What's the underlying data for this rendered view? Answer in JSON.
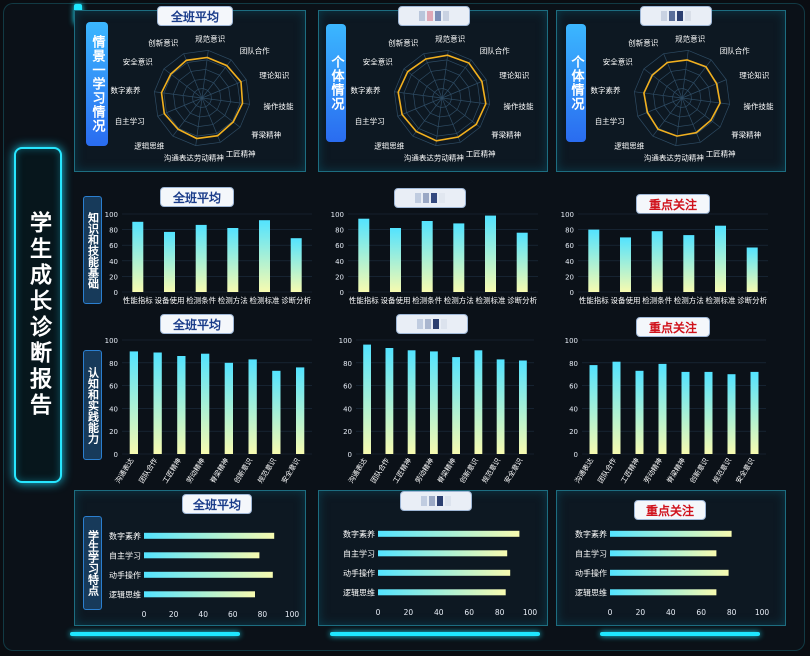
{
  "main_title": "学生成长诊断报告",
  "sections": {
    "radar": "情景一学习情况",
    "radar_personal": "个体情况",
    "knowledge": "知识和技能基础",
    "cognition": "认知和实践能力",
    "traits": "学生学习特点"
  },
  "badges": {
    "class_avg": "全班平均",
    "focus": "重点关注"
  },
  "colors": {
    "accent": "#22e2ff",
    "radar_line": "#f2b01e",
    "bar_top": "#53e3ff",
    "bar_bottom": "#f7fbb0",
    "red_badge": "#d0111b"
  },
  "chart_data": [
    {
      "id": "radar_avg",
      "type": "radar",
      "title": "全班平均",
      "axes": [
        "规范意识",
        "团队合作",
        "理论知识",
        "操作技能",
        "脊梁精神",
        "工匠精神",
        "沟通表达劳动精神",
        "逻辑思维",
        "自主学习",
        "数字素养",
        "安全意识",
        "创新意识"
      ],
      "values": [
        85,
        85,
        88,
        85,
        82,
        85,
        85,
        82,
        85,
        85,
        82,
        85
      ],
      "range": [
        0,
        100
      ]
    },
    {
      "id": "radar_p1",
      "type": "radar",
      "title": "",
      "axes": [
        "规范意识",
        "团队合作",
        "理论知识",
        "操作技能",
        "脊梁精神",
        "工匠精神",
        "沟通表达劳动精神",
        "逻辑思维",
        "自主学习",
        "数字素养",
        "安全意识",
        "创新意识"
      ],
      "values": [
        90,
        92,
        90,
        92,
        90,
        88,
        90,
        88,
        90,
        92,
        90,
        88
      ],
      "range": [
        0,
        100
      ]
    },
    {
      "id": "radar_p2",
      "type": "radar",
      "title": "",
      "axes": [
        "规范意识",
        "团队合作",
        "理论知识",
        "操作技能",
        "脊梁精神",
        "工匠精神",
        "沟通表达劳动精神",
        "逻辑思维",
        "自主学习",
        "数字素养",
        "安全意识",
        "创新意识"
      ],
      "values": [
        80,
        82,
        78,
        80,
        76,
        78,
        80,
        82,
        78,
        80,
        78,
        80
      ],
      "range": [
        0,
        100
      ]
    },
    {
      "id": "know_avg",
      "type": "bar",
      "title": "全班平均",
      "categories": [
        "性能指标",
        "设备使用",
        "检测条件",
        "检测方法",
        "检测标准",
        "诊断分析"
      ],
      "values": [
        90,
        77,
        86,
        82,
        92,
        69
      ],
      "ylim": [
        0,
        100
      ],
      "yticks": [
        0,
        20,
        40,
        60,
        80,
        100
      ]
    },
    {
      "id": "know_p1",
      "type": "bar",
      "title": "",
      "categories": [
        "性能指标",
        "设备使用",
        "检测条件",
        "检测方法",
        "检测标准",
        "诊断分析"
      ],
      "values": [
        94,
        82,
        91,
        88,
        98,
        76
      ],
      "ylim": [
        0,
        100
      ],
      "yticks": [
        0,
        20,
        40,
        60,
        80,
        100
      ]
    },
    {
      "id": "know_p2",
      "type": "bar",
      "title": "重点关注",
      "categories": [
        "性能指标",
        "设备使用",
        "检测条件",
        "检测方法",
        "检测标准",
        "诊断分析"
      ],
      "values": [
        80,
        70,
        78,
        73,
        85,
        57
      ],
      "ylim": [
        0,
        100
      ],
      "yticks": [
        0,
        20,
        40,
        60,
        80,
        100
      ]
    },
    {
      "id": "cog_avg",
      "type": "bar",
      "title": "全班平均",
      "categories": [
        "沟通表达",
        "团队合作",
        "工匠精神",
        "劳动精神",
        "脊梁精神",
        "创新意识",
        "规范意识",
        "安全意识"
      ],
      "values": [
        90,
        89,
        86,
        88,
        80,
        83,
        73,
        76
      ],
      "ylim": [
        0,
        100
      ],
      "yticks": [
        0,
        20,
        40,
        60,
        80,
        100
      ]
    },
    {
      "id": "cog_p1",
      "type": "bar",
      "title": "",
      "categories": [
        "沟通表达",
        "团队合作",
        "工匠精神",
        "劳动精神",
        "脊梁精神",
        "创新意识",
        "规范意识",
        "安全意识"
      ],
      "values": [
        96,
        93,
        91,
        90,
        85,
        91,
        83,
        82
      ],
      "ylim": [
        0,
        100
      ],
      "yticks": [
        0,
        20,
        40,
        60,
        80,
        100
      ]
    },
    {
      "id": "cog_p2",
      "type": "bar",
      "title": "重点关注",
      "categories": [
        "沟通表达",
        "团队合作",
        "工匠精神",
        "劳动精神",
        "脊梁精神",
        "创新意识",
        "规范意识",
        "安全意识"
      ],
      "values": [
        78,
        81,
        73,
        79,
        72,
        72,
        70,
        72
      ],
      "ylim": [
        0,
        100
      ],
      "yticks": [
        0,
        20,
        40,
        60,
        80,
        100
      ]
    },
    {
      "id": "trait_avg",
      "type": "hbar",
      "title": "全班平均",
      "categories": [
        "数字素养",
        "自主学习",
        "动手操作",
        "逻辑思维"
      ],
      "values": [
        88,
        78,
        87,
        75
      ],
      "xlim": [
        0,
        100
      ],
      "xticks": [
        0,
        20,
        40,
        60,
        80,
        100
      ]
    },
    {
      "id": "trait_p1",
      "type": "hbar",
      "title": "",
      "categories": [
        "数字素养",
        "自主学习",
        "动手操作",
        "逻辑思维"
      ],
      "values": [
        93,
        85,
        87,
        84
      ],
      "xlim": [
        0,
        100
      ],
      "xticks": [
        0,
        20,
        40,
        60,
        80,
        100
      ]
    },
    {
      "id": "trait_p2",
      "type": "hbar",
      "title": "重点关注",
      "categories": [
        "数字素养",
        "自主学习",
        "动手操作",
        "逻辑思维"
      ],
      "values": [
        80,
        70,
        78,
        70
      ],
      "xlim": [
        0,
        100
      ],
      "xticks": [
        0,
        20,
        40,
        60,
        80,
        100
      ]
    }
  ]
}
